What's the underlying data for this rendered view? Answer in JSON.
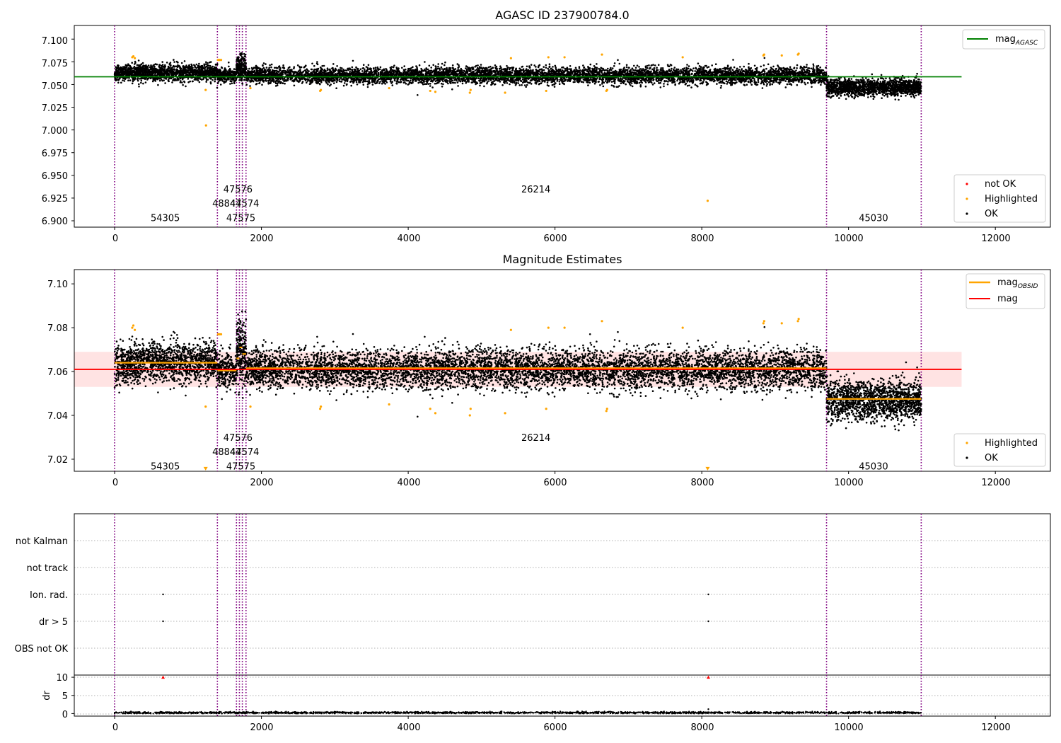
{
  "colors": {
    "ok": "#000000",
    "highlighted": "#ffa500",
    "not_ok": "#ff0000",
    "agasc_line": "#008000",
    "mag_line": "#ff0000",
    "obsid_line": "#ffa500",
    "obs_boundary": "#800080",
    "band_fill": "#ffc0c0",
    "grid": "#b0b0b0"
  },
  "chart_data": [
    {
      "type": "scatter",
      "title": "AGASC ID 237900784.0",
      "xlim": [
        -550,
        12750
      ],
      "ylim": [
        6.893,
        7.115
      ],
      "x_ticks": [
        0,
        2000,
        4000,
        6000,
        8000,
        10000,
        12000
      ],
      "x_tick_labels": [
        "0",
        "2000",
        "4000",
        "6000",
        "8000",
        "10000",
        "12000"
      ],
      "y_ticks": [
        6.9,
        6.925,
        6.95,
        6.975,
        7.0,
        7.025,
        7.05,
        7.075,
        7.1
      ],
      "y_tick_labels": [
        "6.900",
        "6.925",
        "6.950",
        "6.975",
        "7.000",
        "7.025",
        "7.050",
        "7.075",
        "7.100"
      ],
      "legend_top": {
        "position": "upper right",
        "entries": [
          {
            "label": "mag",
            "subscript": "AGASC",
            "kind": "line",
            "color": "#008000"
          }
        ]
      },
      "legend_bottom": {
        "position": "lower right",
        "entries": [
          {
            "label": "not OK",
            "kind": "dot",
            "color": "#ff0000"
          },
          {
            "label": "Highlighted",
            "kind": "dot",
            "color": "#ffa500"
          },
          {
            "label": "OK",
            "kind": "dot",
            "color": "#000000"
          }
        ]
      },
      "agasc_mag": 7.0585,
      "agasc_line_x": [
        -550,
        11540
      ],
      "obs_boundaries": [
        0,
        1400,
        1660,
        1700,
        1740,
        1790,
        9700,
        10990
      ],
      "obs_labels": [
        {
          "text": "54305",
          "x": 690,
          "y": 6.9035
        },
        {
          "text": "48844",
          "x": 1530,
          "y": 6.9195
        },
        {
          "text": "47576",
          "x": 1680,
          "y": 6.935
        },
        {
          "text": "47574",
          "x": 1770,
          "y": 6.9195
        },
        {
          "text": "47575",
          "x": 1720,
          "y": 6.9035
        },
        {
          "text": "26214",
          "x": 5740,
          "y": 6.935
        },
        {
          "text": "45030",
          "x": 10340,
          "y": 6.9035
        }
      ],
      "ok_segments": [
        {
          "x": [
            0,
            1400
          ],
          "mean": 7.063,
          "sigma": 0.0045,
          "n": 1500
        },
        {
          "x": [
            1400,
            1660
          ],
          "mean": 7.06,
          "sigma": 0.004,
          "n": 260
        },
        {
          "x": [
            1660,
            1790
          ],
          "mean": 7.068,
          "sigma": 0.007,
          "n": 220
        },
        {
          "x": [
            1790,
            9700
          ],
          "mean": 7.06,
          "sigma": 0.0045,
          "n": 6500
        },
        {
          "x": [
            9700,
            10990
          ],
          "mean": 7.047,
          "sigma": 0.0045,
          "n": 1500
        }
      ],
      "highlighted_points": [
        [
          240,
          7.08
        ],
        [
          255,
          7.081
        ],
        [
          275,
          7.079
        ],
        [
          1240,
          7.044
        ],
        [
          1245,
          7.005
        ],
        [
          1410,
          7.077
        ],
        [
          1430,
          7.077
        ],
        [
          1450,
          7.077
        ],
        [
          1850,
          7.046
        ],
        [
          2800,
          7.043
        ],
        [
          2810,
          7.044
        ],
        [
          3740,
          7.046
        ],
        [
          4300,
          7.043
        ],
        [
          4370,
          7.042
        ],
        [
          4840,
          7.041
        ],
        [
          4850,
          7.044
        ],
        [
          5320,
          7.041
        ],
        [
          5400,
          7.079
        ],
        [
          5880,
          7.043
        ],
        [
          5910,
          7.08
        ],
        [
          6130,
          7.08
        ],
        [
          6640,
          7.083
        ],
        [
          6700,
          7.043
        ],
        [
          6710,
          7.044
        ],
        [
          7740,
          7.08
        ],
        [
          8080,
          6.922
        ],
        [
          8840,
          7.082
        ],
        [
          8850,
          7.083
        ],
        [
          9090,
          7.082
        ],
        [
          9310,
          7.083
        ],
        [
          9320,
          7.084
        ]
      ]
    },
    {
      "type": "scatter",
      "title": "Magnitude Estimates",
      "xlim": [
        -550,
        12750
      ],
      "ylim": [
        7.0145,
        7.1065
      ],
      "x_ticks": [
        0,
        2000,
        4000,
        6000,
        8000,
        10000,
        12000
      ],
      "x_tick_labels": [
        "0",
        "2000",
        "4000",
        "6000",
        "8000",
        "10000",
        "12000"
      ],
      "y_ticks": [
        7.02,
        7.04,
        7.06,
        7.08,
        7.1
      ],
      "y_tick_labels": [
        "7.02",
        "7.04",
        "7.06",
        "7.08",
        "7.10"
      ],
      "legend_top": {
        "position": "upper right",
        "entries": [
          {
            "label": "mag",
            "subscript": "OBSID",
            "kind": "line",
            "color": "#ffa500"
          },
          {
            "label": "mag",
            "kind": "line",
            "color": "#ff0000"
          }
        ]
      },
      "legend_bottom": {
        "position": "lower right",
        "entries": [
          {
            "label": "Highlighted",
            "kind": "dot",
            "color": "#ffa500"
          },
          {
            "label": "OK",
            "kind": "dot",
            "color": "#000000"
          }
        ]
      },
      "mag": 7.061,
      "mag_band": [
        7.053,
        7.069
      ],
      "mag_line_x": [
        -550,
        11540
      ],
      "obsid_mags": [
        {
          "x": [
            0,
            1400
          ],
          "mag": 7.064
        },
        {
          "x": [
            1400,
            1660
          ],
          "mag": 7.0605
        },
        {
          "x": [
            1660,
            1700
          ],
          "mag": 7.066
        },
        {
          "x": [
            1700,
            1740
          ],
          "mag": 7.071
        },
        {
          "x": [
            1740,
            1790
          ],
          "mag": 7.068
        },
        {
          "x": [
            1790,
            9700
          ],
          "mag": 7.0615
        },
        {
          "x": [
            9700,
            10990
          ],
          "mag": 7.0475
        }
      ],
      "obs_boundaries": [
        0,
        1400,
        1660,
        1700,
        1740,
        1790,
        9700,
        10990
      ],
      "obs_labels": [
        {
          "text": "54305",
          "x": 690,
          "y": 7.017
        },
        {
          "text": "48844",
          "x": 1530,
          "y": 7.0235
        },
        {
          "text": "47576",
          "x": 1680,
          "y": 7.03
        },
        {
          "text": "47574",
          "x": 1770,
          "y": 7.0235
        },
        {
          "text": "47575",
          "x": 1720,
          "y": 7.017
        },
        {
          "text": "26214",
          "x": 5740,
          "y": 7.03
        },
        {
          "text": "45030",
          "x": 10340,
          "y": 7.017
        }
      ],
      "ok_segments": [
        {
          "x": [
            0,
            1400
          ],
          "mean": 7.064,
          "sigma": 0.0045,
          "n": 1500
        },
        {
          "x": [
            1400,
            1660
          ],
          "mean": 7.061,
          "sigma": 0.004,
          "n": 260
        },
        {
          "x": [
            1660,
            1790
          ],
          "mean": 7.069,
          "sigma": 0.007,
          "n": 220
        },
        {
          "x": [
            1790,
            9700
          ],
          "mean": 7.061,
          "sigma": 0.0045,
          "n": 6500
        },
        {
          "x": [
            9700,
            10990
          ],
          "mean": 7.047,
          "sigma": 0.0045,
          "n": 1500
        }
      ],
      "highlighted_points": [
        [
          240,
          7.08
        ],
        [
          255,
          7.081
        ],
        [
          275,
          7.079
        ],
        [
          1240,
          7.044
        ],
        [
          1410,
          7.077
        ],
        [
          1430,
          7.077
        ],
        [
          1450,
          7.077
        ],
        [
          1850,
          7.044
        ],
        [
          2800,
          7.043
        ],
        [
          2810,
          7.044
        ],
        [
          3740,
          7.045
        ],
        [
          4300,
          7.043
        ],
        [
          4370,
          7.041
        ],
        [
          4840,
          7.04
        ],
        [
          4850,
          7.043
        ],
        [
          5320,
          7.041
        ],
        [
          5400,
          7.079
        ],
        [
          5880,
          7.043
        ],
        [
          5910,
          7.08
        ],
        [
          6130,
          7.08
        ],
        [
          6640,
          7.083
        ],
        [
          6700,
          7.042
        ],
        [
          6710,
          7.043
        ],
        [
          7740,
          7.08
        ],
        [
          8840,
          7.082
        ],
        [
          8850,
          7.083
        ],
        [
          9090,
          7.082
        ],
        [
          9310,
          7.083
        ],
        [
          9320,
          7.084
        ]
      ],
      "clipped_points": [
        [
          1240,
          7.0155
        ],
        [
          8080,
          7.0155
        ]
      ]
    },
    {
      "type": "scatter",
      "title": "",
      "xlim": [
        -550,
        12750
      ],
      "categories": [
        "not Kalman",
        "not track",
        "Ion. rad.",
        "dr > 5",
        "OBS not OK"
      ],
      "obs_boundaries": [
        0,
        1400,
        1660,
        1700,
        1740,
        1790,
        9700,
        10990
      ],
      "flag_points": [
        {
          "category": "Ion. rad.",
          "x": 660
        },
        {
          "category": "Ion. rad.",
          "x": 8090
        },
        {
          "category": "dr > 5",
          "x": 660
        },
        {
          "category": "dr > 5",
          "x": 8090
        }
      ]
    },
    {
      "type": "scatter",
      "title": "",
      "xlim": [
        -550,
        12750
      ],
      "ylim": [
        -0.7,
        10.6
      ],
      "ylabel": "dr",
      "x_ticks": [
        0,
        2000,
        4000,
        6000,
        8000,
        10000,
        12000
      ],
      "x_tick_labels": [
        "0",
        "2000",
        "4000",
        "6000",
        "8000",
        "10000",
        "12000"
      ],
      "y_ticks": [
        0,
        5,
        10
      ],
      "y_tick_labels": [
        "0",
        "5",
        "10"
      ],
      "obs_boundaries": [
        0,
        1400,
        1660,
        1700,
        1740,
        1790,
        9700,
        10990
      ],
      "ok_range": [
        0,
        10990
      ],
      "ok_mean": 0.25,
      "ok_sigma": 0.12,
      "ok_n": 2200,
      "not_ok_points": [
        [
          660,
          10
        ],
        [
          8090,
          10
        ]
      ],
      "extra_points": [
        [
          8090,
          1.2
        ]
      ]
    }
  ]
}
